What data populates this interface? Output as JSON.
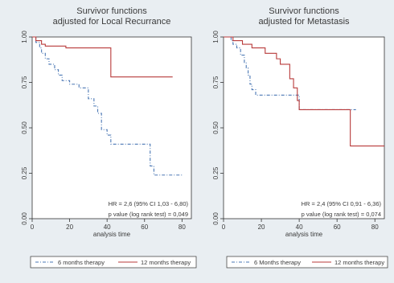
{
  "colors": {
    "outer_bg": "#e9eef2",
    "plot_bg": "#ffffff",
    "axis": "#333333",
    "text": "#3a3a3a",
    "series_6m": "#4a77b4",
    "series_12m": "#b83a3a"
  },
  "chart_data": [
    {
      "type": "line",
      "subtype": "kaplan-meier",
      "title": "Survivor functions adjusted for Local Recurrance",
      "title_lines": [
        "Survivor functions",
        "adjusted for Local Recurrance"
      ],
      "xlabel": "analysis time",
      "ylabel": "",
      "xlim": [
        0,
        85
      ],
      "ylim": [
        0,
        1
      ],
      "x_ticks": [
        0,
        20,
        40,
        60,
        80
      ],
      "y_ticks": [
        0.0,
        0.25,
        0.5,
        0.75,
        1.0
      ],
      "y_tick_labels": [
        "0.00",
        "0.25",
        "0.50",
        "0.75",
        "1.00"
      ],
      "grid": false,
      "annotations": [
        "HR = 2,6 (95% CI 1,03 - 6,80)",
        "p value (log rank test) = 0,049"
      ],
      "legend": {
        "placement": "bottom",
        "entries": [
          "6 months therapy",
          "12 months therapy"
        ]
      },
      "series": [
        {
          "name": "6 months therapy",
          "style": "dash-dot",
          "x": [
            0,
            2,
            4,
            5,
            7,
            9,
            12,
            14,
            16,
            20,
            25,
            30,
            33,
            35,
            37,
            40,
            42,
            45,
            50,
            55,
            58,
            60,
            62,
            63,
            65,
            70,
            75,
            80
          ],
          "y": [
            1.0,
            0.97,
            0.94,
            0.91,
            0.88,
            0.85,
            0.82,
            0.79,
            0.76,
            0.74,
            0.72,
            0.66,
            0.62,
            0.58,
            0.49,
            0.46,
            0.41,
            0.41,
            0.41,
            0.41,
            0.41,
            0.41,
            0.41,
            0.29,
            0.24,
            0.24,
            0.24,
            0.24
          ]
        },
        {
          "name": "12 months therapy",
          "style": "solid",
          "x": [
            0,
            2,
            5,
            7,
            10,
            14,
            18,
            20,
            22,
            25,
            30,
            35,
            40,
            42,
            45,
            50,
            55,
            60,
            65,
            70,
            75
          ],
          "y": [
            1.0,
            0.98,
            0.96,
            0.95,
            0.95,
            0.95,
            0.94,
            0.94,
            0.94,
            0.94,
            0.94,
            0.94,
            0.94,
            0.78,
            0.78,
            0.78,
            0.78,
            0.78,
            0.78,
            0.78,
            0.78
          ]
        }
      ]
    },
    {
      "type": "line",
      "subtype": "kaplan-meier",
      "title": "Survivor functions adjusted for Metastasis",
      "title_lines": [
        "Survivor functions",
        "adjusted for Metastasis"
      ],
      "xlabel": "analysis time",
      "ylabel": "",
      "xlim": [
        0,
        85
      ],
      "ylim": [
        0,
        1
      ],
      "x_ticks": [
        0,
        20,
        40,
        60,
        80
      ],
      "y_ticks": [
        0.0,
        0.25,
        0.5,
        0.75,
        1.0
      ],
      "y_tick_labels": [
        "0.00",
        "0.25",
        "0.50",
        "0.75",
        "1.00"
      ],
      "grid": false,
      "annotations": [
        "HR = 2,4 (95% CI 0,91 - 6,36)",
        "p value (log rank test) = 0,074"
      ],
      "legend": {
        "placement": "bottom",
        "entries": [
          "6 Months therapy",
          "12 months therapy"
        ]
      },
      "series": [
        {
          "name": "6 Months therapy",
          "style": "dash-dot",
          "x": [
            0,
            2,
            4,
            5,
            7,
            9,
            11,
            12,
            13,
            14,
            15,
            17,
            20,
            25,
            30,
            35,
            38,
            40,
            45,
            50,
            55,
            60,
            65,
            70
          ],
          "y": [
            1.0,
            1.0,
            0.98,
            0.96,
            0.94,
            0.9,
            0.86,
            0.83,
            0.79,
            0.74,
            0.71,
            0.68,
            0.68,
            0.68,
            0.68,
            0.68,
            0.68,
            0.6,
            0.6,
            0.6,
            0.6,
            0.6,
            0.6,
            0.6
          ]
        },
        {
          "name": "12 months therapy",
          "style": "solid",
          "x": [
            0,
            3,
            5,
            8,
            10,
            12,
            15,
            18,
            22,
            25,
            28,
            30,
            32,
            35,
            37,
            39,
            40,
            45,
            50,
            55,
            60,
            65,
            67,
            70,
            75,
            85
          ],
          "y": [
            1.0,
            1.0,
            0.98,
            0.98,
            0.96,
            0.96,
            0.94,
            0.94,
            0.91,
            0.91,
            0.88,
            0.85,
            0.85,
            0.77,
            0.72,
            0.65,
            0.6,
            0.6,
            0.6,
            0.6,
            0.6,
            0.6,
            0.4,
            0.4,
            0.4,
            0.4
          ]
        }
      ]
    }
  ]
}
